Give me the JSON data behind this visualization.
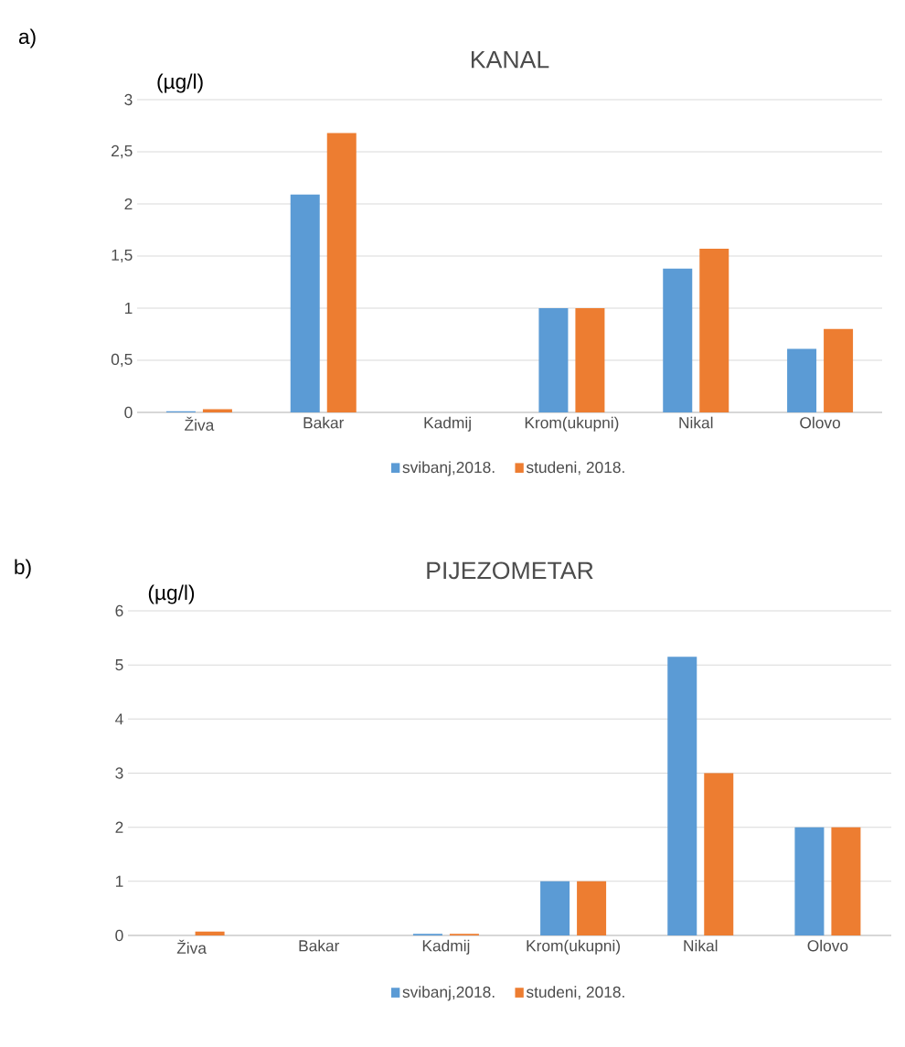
{
  "chart_data": [
    {
      "type": "bar",
      "title": "KANAL",
      "ylabel": "(µg/l)",
      "annotations": [
        "a)"
      ],
      "categories": [
        "Živa",
        "Bakar",
        "Kadmij",
        "Krom(ukupni)",
        "Nikal",
        "Olovo"
      ],
      "series": [
        {
          "name": "svibanj,2018.",
          "color": "#5b9bd5",
          "values": [
            0.01,
            2.09,
            0,
            1,
            1.38,
            0.61
          ]
        },
        {
          "name": "studeni, 2018.",
          "color": "#ed7d31",
          "values": [
            0.03,
            2.68,
            0,
            1,
            1.57,
            0.8
          ]
        }
      ],
      "ylim": [
        0,
        3
      ],
      "yticks": [
        0,
        {
          "value": 0.5,
          "label": "0,5"
        },
        1,
        {
          "value": 1.5,
          "label": "1,5"
        },
        2,
        {
          "value": 2.5,
          "label": "2,5"
        },
        3
      ],
      "grid": "y",
      "legend": "bottom"
    },
    {
      "type": "bar",
      "title": "PIJEZOMETAR",
      "ylabel": "(µg/l)",
      "annotations": [
        "b)"
      ],
      "categories": [
        "Živa",
        "Bakar",
        "Kadmij",
        "Krom(ukupni)",
        "Nikal",
        "Olovo"
      ],
      "series": [
        {
          "name": "svibanj,2018.",
          "color": "#5b9bd5",
          "values": [
            0,
            0,
            0.03,
            1,
            5.15,
            2
          ]
        },
        {
          "name": "studeni, 2018.",
          "color": "#ed7d31",
          "values": [
            0.07,
            0,
            0.03,
            1,
            3,
            2
          ]
        }
      ],
      "ylim": [
        0,
        6
      ],
      "yticks": [
        0,
        1,
        2,
        3,
        4,
        5,
        6
      ],
      "grid": "y",
      "legend": "bottom"
    }
  ]
}
